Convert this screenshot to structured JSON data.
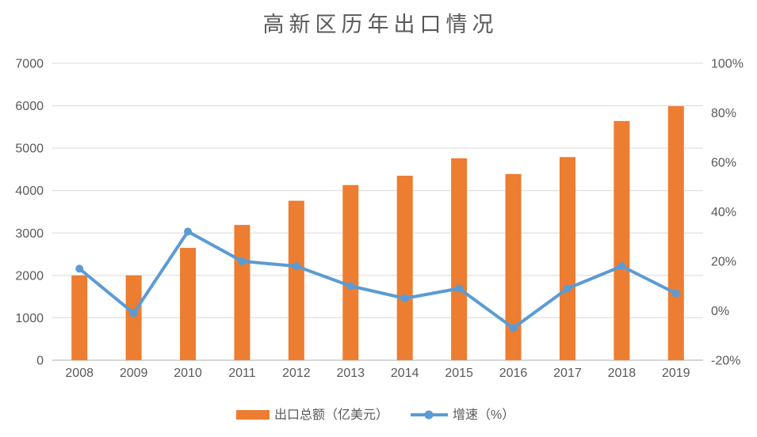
{
  "title": "高新区历年出口情况",
  "colors": {
    "bar": "#ED7D31",
    "line": "#5B9BD5",
    "grid": "#D9D9D9",
    "axis_line": "#D6D6D6",
    "text": "#595959",
    "background": "#FFFFFF"
  },
  "chart_data": {
    "type": "combo-bar-line",
    "title": "高新区历年出口情况",
    "categories": [
      "2008",
      "2009",
      "2010",
      "2011",
      "2012",
      "2013",
      "2014",
      "2015",
      "2016",
      "2017",
      "2018",
      "2019"
    ],
    "series": [
      {
        "name": "出口总额（亿美元）",
        "type": "bar",
        "axis": "left",
        "color": "#ED7D31",
        "values": [
          2000,
          2000,
          2650,
          3190,
          3760,
          4130,
          4350,
          4760,
          4390,
          4790,
          5640,
          5990
        ]
      },
      {
        "name": "增速（%）",
        "type": "line",
        "axis": "right",
        "color": "#5B9BD5",
        "values": [
          17,
          -1,
          32,
          20,
          18,
          10,
          5,
          9,
          -7,
          9,
          18,
          7
        ]
      }
    ],
    "left_axis": {
      "min": 0,
      "max": 7000,
      "step": 1000,
      "tick_labels": [
        "0",
        "1000",
        "2000",
        "3000",
        "4000",
        "5000",
        "6000",
        "7000"
      ]
    },
    "right_axis": {
      "min": -20,
      "max": 100,
      "step": 20,
      "tick_labels": [
        "-20%",
        "0%",
        "20%",
        "40%",
        "60%",
        "80%",
        "100%"
      ]
    },
    "grid": true,
    "legend_position": "bottom"
  },
  "legend": {
    "items": [
      {
        "label": "出口总额（亿美元）"
      },
      {
        "label": "增速（%）"
      }
    ]
  }
}
